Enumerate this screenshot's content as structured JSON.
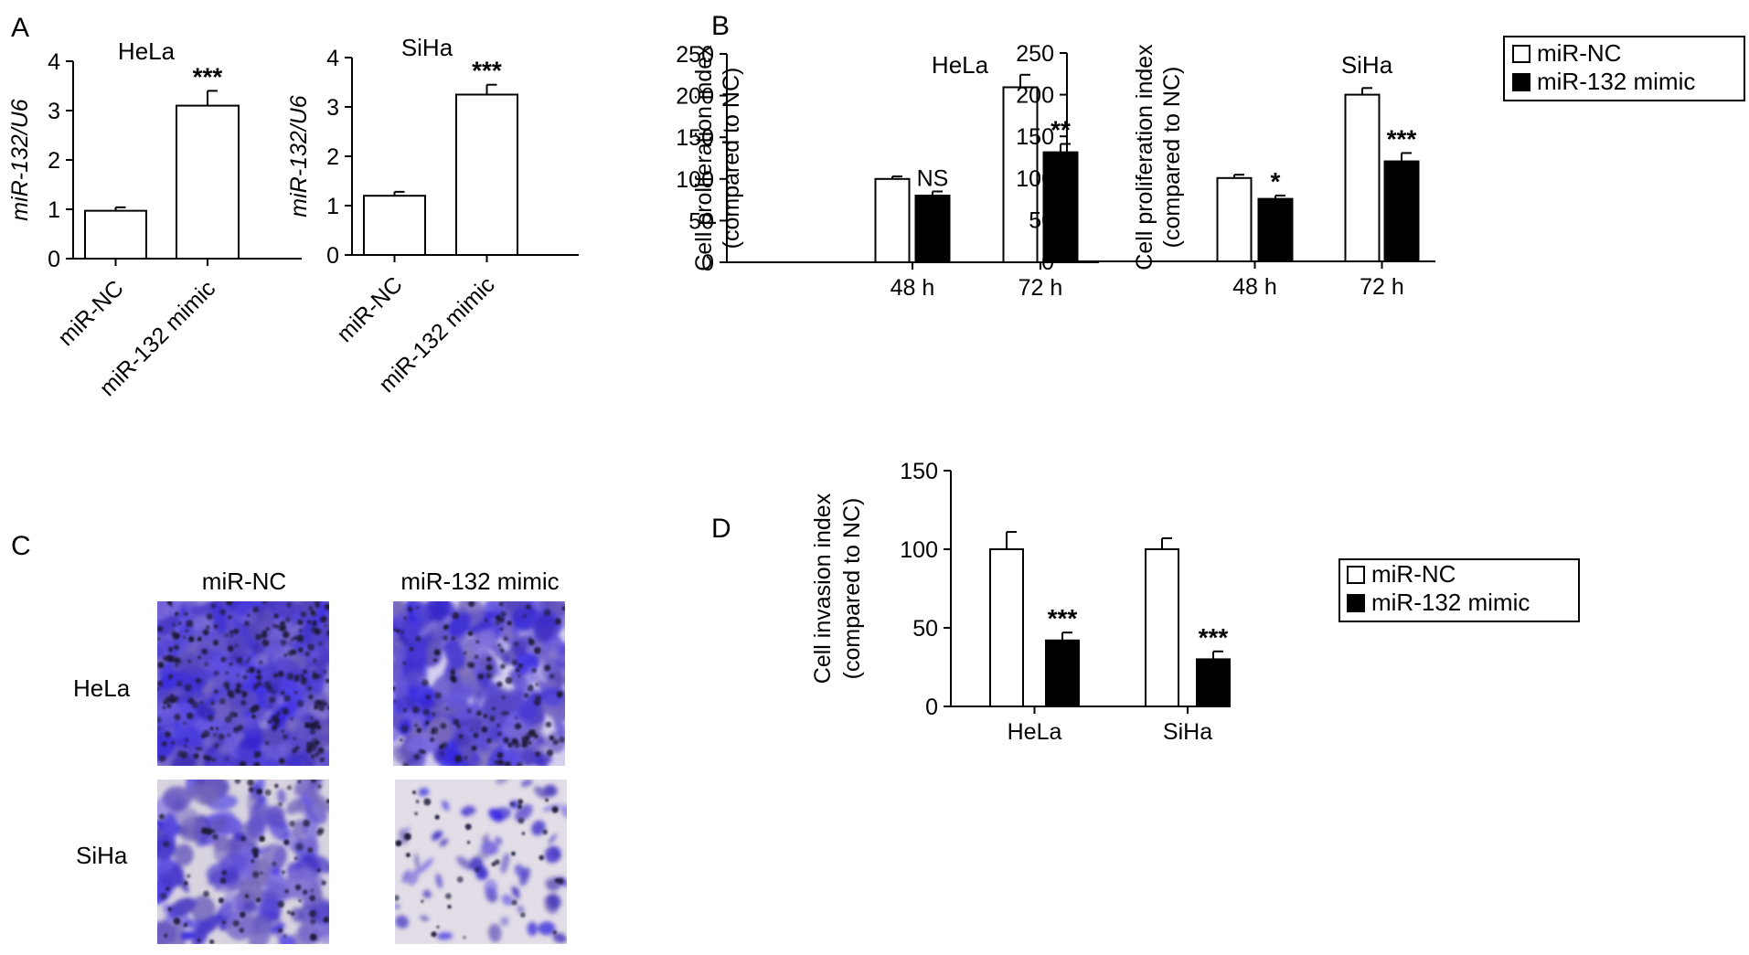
{
  "panels": {
    "A": "A",
    "B": "B",
    "C": "C",
    "D": "D"
  },
  "colors": {
    "open": "#ffffff",
    "filled": "#000000",
    "stain_dense": "#6a5fc2",
    "stain_light": "#d9d4e3"
  },
  "panel_c": {
    "columns": [
      "miR-NC",
      "miR-132 mimic"
    ],
    "rows": [
      "HeLa",
      "SiHa"
    ]
  },
  "chart_data": [
    {
      "id": "A-HeLa",
      "type": "bar",
      "title": "HeLa",
      "ylabel": "miR-132/U6",
      "categories": [
        "miR-NC",
        "miR-132 mimic"
      ],
      "values": [
        0.97,
        3.1
      ],
      "errors": [
        0.07,
        0.3
      ],
      "significance": [
        "",
        "***"
      ],
      "ylim": [
        0,
        4
      ],
      "yticks": [
        0,
        1,
        2,
        3,
        4
      ]
    },
    {
      "id": "A-SiHa",
      "type": "bar",
      "title": "SiHa",
      "ylabel": "miR-132/U6",
      "categories": [
        "miR-NC",
        "miR-132 mimic"
      ],
      "values": [
        1.2,
        3.25
      ],
      "errors": [
        0.08,
        0.2
      ],
      "significance": [
        "",
        "***"
      ],
      "ylim": [
        0,
        4
      ],
      "yticks": [
        0,
        1,
        2,
        3,
        4
      ]
    },
    {
      "id": "B-HeLa",
      "type": "bar",
      "title": "HeLa",
      "ylabel": [
        "Cell proliferation index",
        "(compared to NC)"
      ],
      "categories": [
        "48 h",
        "72 h"
      ],
      "series": [
        {
          "name": "miR-NC",
          "values": [
            100,
            210
          ],
          "errors": [
            3,
            15
          ]
        },
        {
          "name": "miR-132 mimic",
          "values": [
            80,
            132
          ],
          "errors": [
            5,
            10
          ]
        }
      ],
      "significance": [
        "NS",
        "**"
      ],
      "ylim": [
        0,
        250
      ],
      "yticks": [
        0,
        50,
        100,
        150,
        200,
        250
      ]
    },
    {
      "id": "B-SiHa",
      "type": "bar",
      "title": "SiHa",
      "ylabel": [
        "Cell proliferation index",
        "(compared to NC)"
      ],
      "categories": [
        "48 h",
        "72 h"
      ],
      "series": [
        {
          "name": "miR-NC",
          "values": [
            100,
            200
          ],
          "errors": [
            4,
            8
          ]
        },
        {
          "name": "miR-132 mimic",
          "values": [
            75,
            120
          ],
          "errors": [
            4,
            10
          ]
        }
      ],
      "significance": [
        "*",
        "***"
      ],
      "ylim": [
        0,
        250
      ],
      "yticks": [
        0,
        50,
        100,
        150,
        200,
        250
      ],
      "legend": "top-right"
    },
    {
      "id": "D",
      "type": "bar",
      "title": "",
      "ylabel": [
        "Cell invasion index",
        "(compared to NC)"
      ],
      "categories": [
        "HeLa",
        "SiHa"
      ],
      "series": [
        {
          "name": "miR-NC",
          "values": [
            100,
            100
          ],
          "errors": [
            11,
            7
          ]
        },
        {
          "name": "miR-132 mimic",
          "values": [
            42,
            30
          ],
          "errors": [
            5,
            5
          ]
        }
      ],
      "significance": [
        "***",
        "***"
      ],
      "ylim": [
        0,
        150
      ],
      "yticks": [
        0,
        50,
        100,
        150
      ],
      "legend": "top-right"
    }
  ]
}
